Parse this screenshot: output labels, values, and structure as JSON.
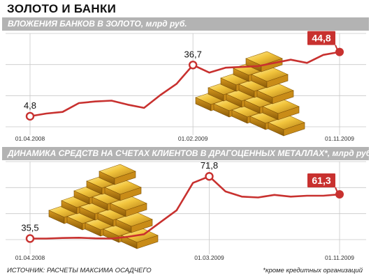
{
  "title": "ЗОЛОТО И БАНКИ",
  "footer": {
    "source": "ИСТОЧНИК: РАСЧЕТЫ МАКСИМА ОСАДЧЕГО",
    "note": "*кроме кредитных организаций"
  },
  "colors": {
    "line": "#c8312f",
    "grid": "#c8c8c8",
    "band": "#b3b3b3",
    "highlight": "#c8312f"
  },
  "chart_data": [
    {
      "type": "line",
      "title": "ВЛОЖЕНИЯ БАНКОВ В ЗОЛОТО, млрд руб.",
      "ylim": [
        0,
        52
      ],
      "x_ticks": [
        "01.04.2008",
        "01.02.2009",
        "01.11.2009"
      ],
      "x_tick_index": [
        0,
        10,
        19
      ],
      "labeled_points": [
        {
          "index": 0,
          "value": "4,8"
        },
        {
          "index": 10,
          "value": "36,7"
        },
        {
          "index": 19,
          "value": "44,8",
          "highlight": true
        }
      ],
      "series": [
        {
          "values": [
            4.8,
            6.5,
            7.5,
            13.0,
            14.0,
            14.5,
            12.0,
            10.0,
            18.0,
            25.0,
            36.7,
            32.0,
            35.0,
            35.5,
            36.0,
            38.0,
            40.0,
            38.0,
            43.0,
            44.8
          ]
        }
      ]
    },
    {
      "type": "line",
      "title": "ДИНАМИКА СРЕДСТВ НА СЧЕТАХ КЛИЕНТОВ В ДРАГОЦЕННЫХ  МЕТАЛЛАХ*, млрд руб.",
      "ylim": [
        30,
        78
      ],
      "x_ticks": [
        "01.04.2008",
        "01.03.2009",
        "01.11.2009"
      ],
      "x_tick_index": [
        0,
        11,
        19
      ],
      "labeled_points": [
        {
          "index": 0,
          "value": "35,5"
        },
        {
          "index": 11,
          "value": "71,8"
        },
        {
          "index": 19,
          "value": "61,3",
          "highlight": true
        }
      ],
      "series": [
        {
          "values": [
            35.5,
            35.5,
            35.8,
            36.0,
            35.6,
            35.5,
            36.5,
            38.0,
            45.0,
            52.0,
            68.0,
            71.8,
            63.0,
            60.0,
            59.5,
            61.0,
            60.0,
            60.5,
            60.5,
            61.3
          ]
        }
      ]
    }
  ]
}
